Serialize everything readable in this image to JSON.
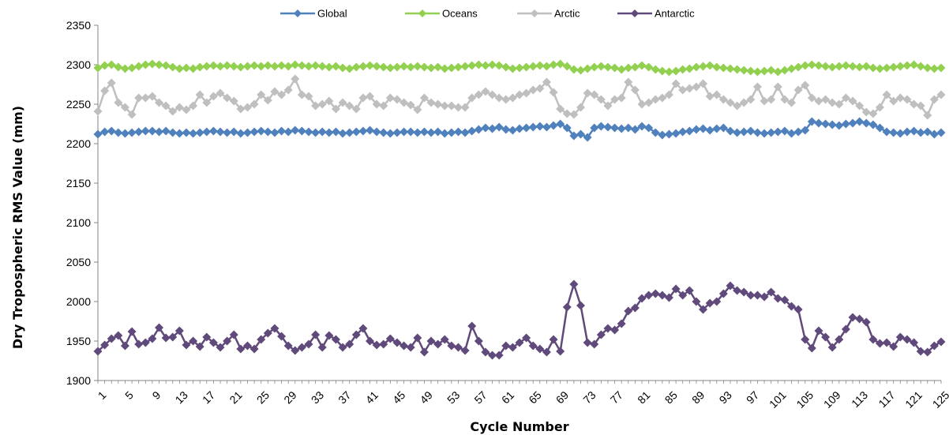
{
  "chart_data": {
    "type": "line",
    "xlabel": "Cycle Number",
    "ylabel": "Dry Tropospheric RMS Value (mm)",
    "ylim": [
      1900,
      2350
    ],
    "yticks": [
      1900,
      1950,
      2000,
      2050,
      2100,
      2150,
      2200,
      2250,
      2300,
      2350
    ],
    "xlim": [
      1,
      125
    ],
    "xticks": [
      1,
      5,
      9,
      13,
      17,
      21,
      25,
      29,
      33,
      37,
      41,
      45,
      49,
      53,
      57,
      61,
      65,
      69,
      73,
      77,
      81,
      85,
      89,
      93,
      97,
      101,
      105,
      109,
      113,
      117,
      121,
      125
    ],
    "grid": false,
    "legend_position": "top",
    "series": [
      {
        "name": "Global",
        "color": "#4f81bd",
        "marker": "diamond",
        "values": [
          2212,
          2215,
          2216,
          2214,
          2213,
          2214,
          2215,
          2216,
          2216,
          2215,
          2216,
          2214,
          2213,
          2214,
          2213,
          2214,
          2215,
          2216,
          2215,
          2214,
          2215,
          2213,
          2214,
          2215,
          2216,
          2215,
          2214,
          2216,
          2215,
          2217,
          2216,
          2215,
          2214,
          2215,
          2214,
          2215,
          2213,
          2214,
          2215,
          2216,
          2217,
          2215,
          2214,
          2213,
          2214,
          2215,
          2215,
          2214,
          2215,
          2214,
          2215,
          2213,
          2214,
          2215,
          2214,
          2216,
          2218,
          2220,
          2219,
          2221,
          2218,
          2217,
          2219,
          2220,
          2221,
          2222,
          2221,
          2223,
          2225,
          2220,
          2210,
          2212,
          2208,
          2220,
          2222,
          2221,
          2220,
          2219,
          2220,
          2218,
          2222,
          2220,
          2214,
          2211,
          2212,
          2213,
          2215,
          2216,
          2218,
          2219,
          2217,
          2219,
          2220,
          2216,
          2214,
          2215,
          2216,
          2214,
          2213,
          2214,
          2215,
          2216,
          2213,
          2215,
          2217,
          2228,
          2226,
          2225,
          2224,
          2223,
          2225,
          2226,
          2228,
          2226,
          2224,
          2220,
          2215,
          2214,
          2213,
          2215,
          2216,
          2214,
          2215,
          2212,
          2214
        ]
      },
      {
        "name": "Oceans",
        "color": "#92d050",
        "marker": "diamond",
        "values": [
          2296,
          2299,
          2300,
          2297,
          2295,
          2296,
          2298,
          2300,
          2301,
          2300,
          2299,
          2297,
          2295,
          2296,
          2295,
          2297,
          2298,
          2299,
          2298,
          2299,
          2298,
          2297,
          2298,
          2299,
          2298,
          2299,
          2298,
          2299,
          2298,
          2300,
          2299,
          2298,
          2299,
          2298,
          2297,
          2298,
          2296,
          2295,
          2297,
          2298,
          2299,
          2298,
          2297,
          2296,
          2297,
          2298,
          2297,
          2298,
          2297,
          2296,
          2297,
          2295,
          2296,
          2297,
          2298,
          2299,
          2300,
          2299,
          2300,
          2299,
          2297,
          2295,
          2296,
          2297,
          2298,
          2299,
          2298,
          2300,
          2301,
          2298,
          2294,
          2293,
          2295,
          2297,
          2298,
          2297,
          2296,
          2294,
          2296,
          2297,
          2299,
          2297,
          2294,
          2292,
          2291,
          2292,
          2294,
          2295,
          2297,
          2298,
          2299,
          2297,
          2296,
          2295,
          2294,
          2293,
          2292,
          2291,
          2292,
          2293,
          2291,
          2293,
          2295,
          2297,
          2299,
          2300,
          2299,
          2298,
          2297,
          2298,
          2299,
          2298,
          2297,
          2298,
          2296,
          2295,
          2296,
          2297,
          2298,
          2299,
          2300,
          2298,
          2296,
          2295,
          2296
        ]
      },
      {
        "name": "Arctic",
        "color": "#bfbfbf",
        "marker": "diamond",
        "values": [
          2241,
          2267,
          2277,
          2252,
          2246,
          2237,
          2258,
          2258,
          2260,
          2252,
          2248,
          2241,
          2246,
          2243,
          2248,
          2262,
          2252,
          2260,
          2264,
          2258,
          2254,
          2244,
          2246,
          2250,
          2262,
          2255,
          2266,
          2262,
          2268,
          2282,
          2262,
          2260,
          2248,
          2250,
          2254,
          2244,
          2252,
          2248,
          2244,
          2258,
          2260,
          2250,
          2248,
          2258,
          2256,
          2252,
          2249,
          2243,
          2258,
          2252,
          2250,
          2248,
          2248,
          2246,
          2246,
          2258,
          2262,
          2266,
          2262,
          2258,
          2256,
          2258,
          2262,
          2264,
          2268,
          2270,
          2278,
          2265,
          2244,
          2238,
          2237,
          2246,
          2264,
          2262,
          2256,
          2248,
          2256,
          2258,
          2278,
          2268,
          2250,
          2252,
          2256,
          2258,
          2262,
          2276,
          2268,
          2270,
          2272,
          2276,
          2260,
          2262,
          2256,
          2252,
          2248,
          2252,
          2256,
          2272,
          2254,
          2256,
          2272,
          2256,
          2252,
          2268,
          2274,
          2258,
          2254,
          2256,
          2252,
          2250,
          2258,
          2254,
          2248,
          2240,
          2238,
          2246,
          2262,
          2254,
          2258,
          2256,
          2250,
          2248,
          2236,
          2256,
          2262
        ]
      },
      {
        "name": "Antarctic",
        "color": "#604a7b",
        "marker": "diamond",
        "values": [
          1937,
          1945,
          1953,
          1957,
          1944,
          1962,
          1946,
          1948,
          1953,
          1967,
          1954,
          1955,
          1963,
          1945,
          1950,
          1943,
          1955,
          1948,
          1942,
          1950,
          1958,
          1940,
          1944,
          1940,
          1952,
          1960,
          1966,
          1956,
          1944,
          1938,
          1942,
          1946,
          1958,
          1942,
          1957,
          1952,
          1942,
          1946,
          1958,
          1966,
          1950,
          1945,
          1946,
          1953,
          1948,
          1944,
          1942,
          1954,
          1936,
          1950,
          1946,
          1952,
          1944,
          1942,
          1938,
          1969,
          1950,
          1936,
          1932,
          1932,
          1944,
          1942,
          1948,
          1954,
          1944,
          1940,
          1936,
          1952,
          1937,
          1993,
          2022,
          1995,
          1948,
          1946,
          1958,
          1966,
          1964,
          1972,
          1988,
          1992,
          2004,
          2008,
          2010,
          2008,
          2005,
          2016,
          2008,
          2014,
          2000,
          1990,
          1998,
          2000,
          2010,
          2020,
          2014,
          2012,
          2008,
          2008,
          2006,
          2012,
          2004,
          2002,
          1994,
          1990,
          1952,
          1941,
          1963,
          1955,
          1942,
          1952,
          1965,
          1980,
          1978,
          1974,
          1952,
          1947,
          1948,
          1943,
          1955,
          1952,
          1948,
          1937,
          1936,
          1944,
          1949
        ]
      }
    ]
  }
}
